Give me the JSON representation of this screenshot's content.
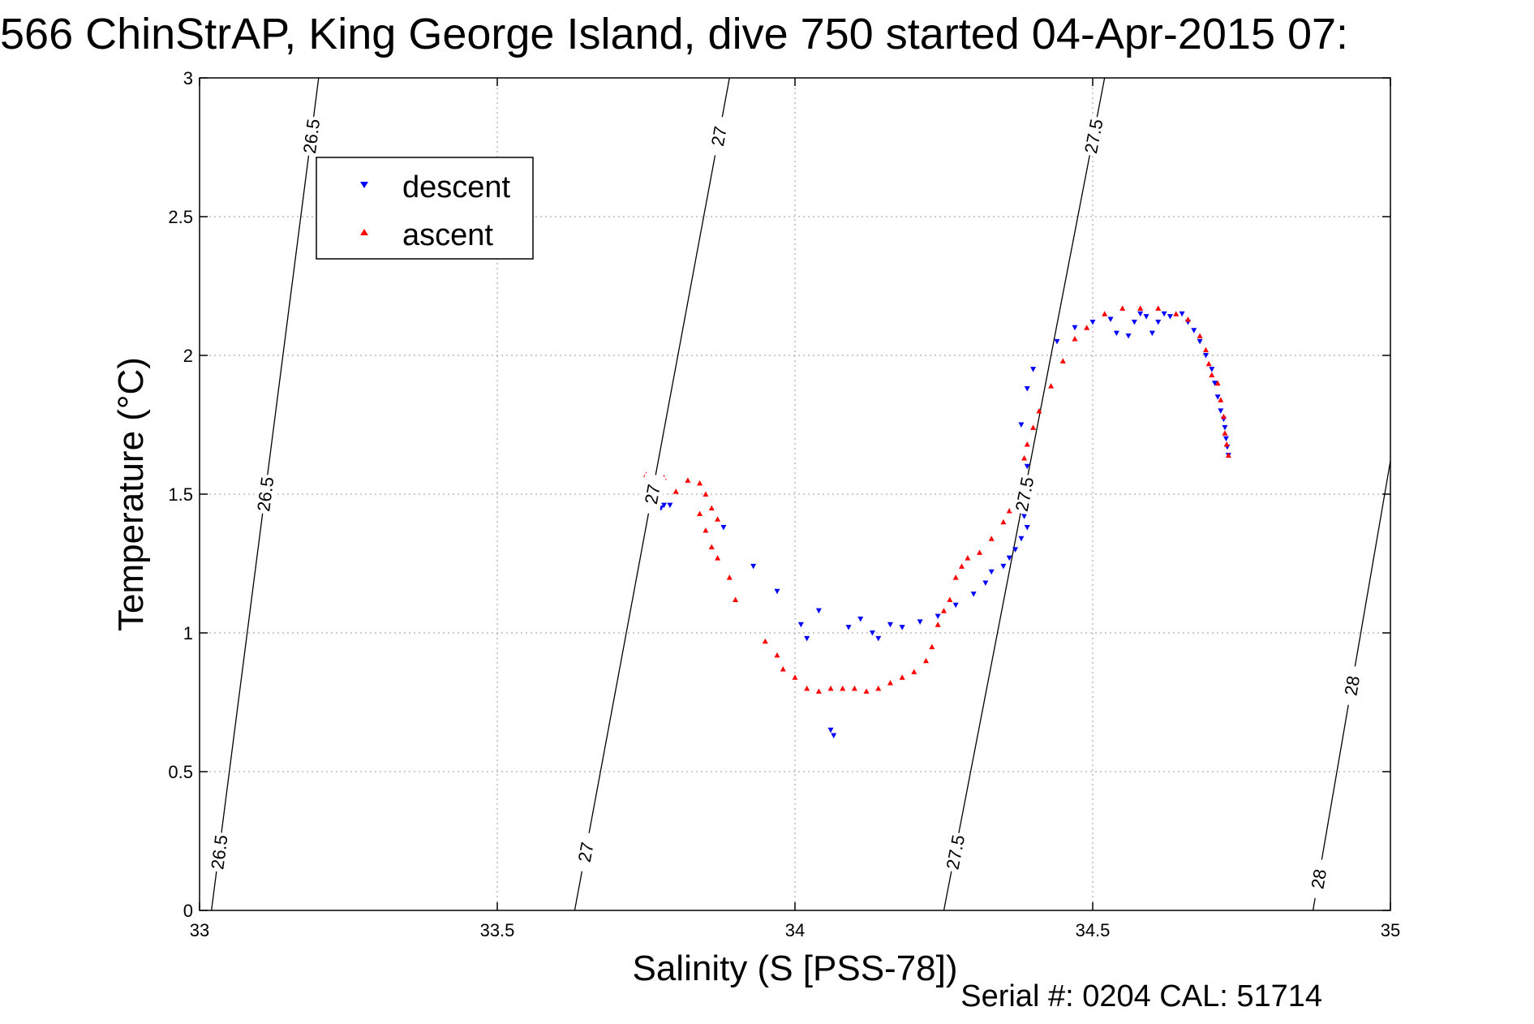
{
  "chart_data": {
    "type": "scatter",
    "title": "566 ChinStrAP, King George Island, dive 750 started 04-Apr-2015 07:",
    "xlabel": "Salinity (S [PSS-78])",
    "ylabel": "Temperature (°C)",
    "footer": "Serial #: 0204  CAL: 51714",
    "xlim": [
      33,
      35
    ],
    "ylim": [
      0,
      3
    ],
    "xticks": [
      "33",
      "33.5",
      "34",
      "34.5",
      "35"
    ],
    "yticks": [
      "0",
      "0.5",
      "1",
      "1.5",
      "2",
      "2.5",
      "3"
    ],
    "grid": true,
    "legend_position": "top-left",
    "density_contours": [
      {
        "label": "26.5",
        "line": [
          [
            33.02,
            0
          ],
          [
            33.2,
            3
          ]
        ]
      },
      {
        "label": "27",
        "line": [
          [
            33.63,
            0
          ],
          [
            33.89,
            3
          ]
        ]
      },
      {
        "label": "27.5",
        "line": [
          [
            34.25,
            0
          ],
          [
            34.52,
            3
          ]
        ]
      },
      {
        "label": "28",
        "line": [
          [
            34.87,
            0
          ],
          [
            35.0,
            1.62
          ]
        ]
      }
    ],
    "series": [
      {
        "name": "descent",
        "color": "#0000ff",
        "marker": "triangle-down",
        "points": [
          [
            33.76,
            1.46
          ],
          [
            33.765,
            1.45
          ],
          [
            33.77,
            1.44
          ],
          [
            33.775,
            1.45
          ],
          [
            33.78,
            1.46
          ],
          [
            33.79,
            1.46
          ],
          [
            33.88,
            1.38
          ],
          [
            33.93,
            1.24
          ],
          [
            33.97,
            1.15
          ],
          [
            34.01,
            1.03
          ],
          [
            34.02,
            0.98
          ],
          [
            34.04,
            1.08
          ],
          [
            34.06,
            0.65
          ],
          [
            34.065,
            0.63
          ],
          [
            34.09,
            1.02
          ],
          [
            34.11,
            1.05
          ],
          [
            34.13,
            1.0
          ],
          [
            34.14,
            0.98
          ],
          [
            34.16,
            1.03
          ],
          [
            34.18,
            1.02
          ],
          [
            34.21,
            1.04
          ],
          [
            34.24,
            1.06
          ],
          [
            34.27,
            1.1
          ],
          [
            34.3,
            1.14
          ],
          [
            34.32,
            1.18
          ],
          [
            34.33,
            1.22
          ],
          [
            34.35,
            1.24
          ],
          [
            34.36,
            1.27
          ],
          [
            34.37,
            1.3
          ],
          [
            34.38,
            1.34
          ],
          [
            34.39,
            1.38
          ],
          [
            34.385,
            1.42
          ],
          [
            34.4,
            1.53
          ],
          [
            34.39,
            1.6
          ],
          [
            34.38,
            1.75
          ],
          [
            34.39,
            1.88
          ],
          [
            34.4,
            1.95
          ],
          [
            34.44,
            2.05
          ],
          [
            34.47,
            2.1
          ],
          [
            34.5,
            2.12
          ],
          [
            34.53,
            2.13
          ],
          [
            34.54,
            2.08
          ],
          [
            34.56,
            2.07
          ],
          [
            34.57,
            2.12
          ],
          [
            34.58,
            2.15
          ],
          [
            34.59,
            2.14
          ],
          [
            34.6,
            2.08
          ],
          [
            34.61,
            2.12
          ],
          [
            34.62,
            2.15
          ],
          [
            34.63,
            2.14
          ],
          [
            34.65,
            2.15
          ],
          [
            34.66,
            2.12
          ],
          [
            34.67,
            2.09
          ],
          [
            34.68,
            2.05
          ],
          [
            34.69,
            2.0
          ],
          [
            34.7,
            1.95
          ],
          [
            34.705,
            1.9
          ],
          [
            34.71,
            1.85
          ],
          [
            34.715,
            1.8
          ],
          [
            34.72,
            1.77
          ],
          [
            34.722,
            1.74
          ],
          [
            34.724,
            1.7
          ],
          [
            34.726,
            1.67
          ],
          [
            34.728,
            1.64
          ]
        ]
      },
      {
        "name": "ascent",
        "color": "#ff0000",
        "marker": "triangle-up",
        "points": [
          [
            33.75,
            1.57
          ],
          [
            33.755,
            1.55
          ],
          [
            33.76,
            1.53
          ],
          [
            33.765,
            1.5
          ],
          [
            33.77,
            1.48
          ],
          [
            33.78,
            1.56
          ],
          [
            33.8,
            1.51
          ],
          [
            33.82,
            1.55
          ],
          [
            33.84,
            1.54
          ],
          [
            33.85,
            1.5
          ],
          [
            33.84,
            1.43
          ],
          [
            33.86,
            1.45
          ],
          [
            33.87,
            1.41
          ],
          [
            33.85,
            1.37
          ],
          [
            33.86,
            1.31
          ],
          [
            33.87,
            1.27
          ],
          [
            33.89,
            1.2
          ],
          [
            33.9,
            1.12
          ],
          [
            33.95,
            0.97
          ],
          [
            33.97,
            0.92
          ],
          [
            33.98,
            0.87
          ],
          [
            34.0,
            0.84
          ],
          [
            34.02,
            0.8
          ],
          [
            34.04,
            0.79
          ],
          [
            34.06,
            0.8
          ],
          [
            34.08,
            0.8
          ],
          [
            34.1,
            0.8
          ],
          [
            34.12,
            0.79
          ],
          [
            34.14,
            0.8
          ],
          [
            34.16,
            0.82
          ],
          [
            34.18,
            0.84
          ],
          [
            34.2,
            0.86
          ],
          [
            34.22,
            0.9
          ],
          [
            34.23,
            0.95
          ],
          [
            34.24,
            1.03
          ],
          [
            34.25,
            1.08
          ],
          [
            34.26,
            1.12
          ],
          [
            34.27,
            1.2
          ],
          [
            34.28,
            1.24
          ],
          [
            34.29,
            1.27
          ],
          [
            34.31,
            1.29
          ],
          [
            34.33,
            1.34
          ],
          [
            34.35,
            1.4
          ],
          [
            34.36,
            1.44
          ],
          [
            34.37,
            1.48
          ],
          [
            34.38,
            1.55
          ],
          [
            34.385,
            1.63
          ],
          [
            34.39,
            1.68
          ],
          [
            34.4,
            1.74
          ],
          [
            34.41,
            1.8
          ],
          [
            34.43,
            1.89
          ],
          [
            34.45,
            1.98
          ],
          [
            34.47,
            2.06
          ],
          [
            34.49,
            2.1
          ],
          [
            34.52,
            2.15
          ],
          [
            34.55,
            2.17
          ],
          [
            34.58,
            2.17
          ],
          [
            34.61,
            2.17
          ],
          [
            34.64,
            2.15
          ],
          [
            34.66,
            2.13
          ],
          [
            34.68,
            2.07
          ],
          [
            34.69,
            2.02
          ],
          [
            34.695,
            1.97
          ],
          [
            34.7,
            1.93
          ],
          [
            34.71,
            1.9
          ],
          [
            34.715,
            1.84
          ],
          [
            34.72,
            1.78
          ],
          [
            34.722,
            1.72
          ],
          [
            34.725,
            1.68
          ],
          [
            34.728,
            1.64
          ]
        ]
      }
    ]
  }
}
